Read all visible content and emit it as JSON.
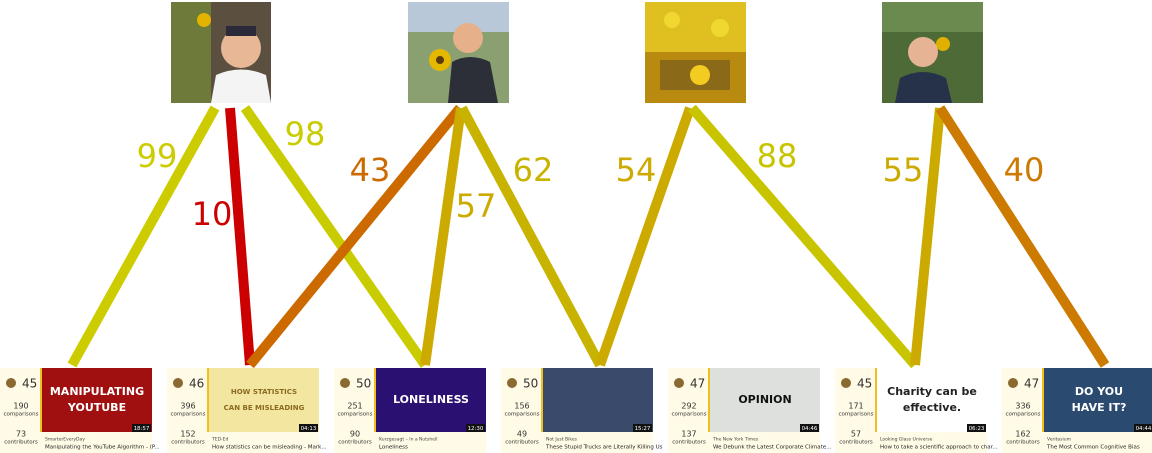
{
  "edges": [
    {
      "label": 99,
      "color": "#cccc00"
    },
    {
      "label": 10,
      "color": "#cc0000"
    },
    {
      "label": 98,
      "color": "#c8cc00"
    },
    {
      "label": 43,
      "color": "#cc6a00"
    },
    {
      "label": 57,
      "color": "#ccaa00"
    },
    {
      "label": 62,
      "color": "#c8b400"
    },
    {
      "label": 54,
      "color": "#ccaa00"
    },
    {
      "label": 88,
      "color": "#c8c400"
    },
    {
      "label": 55,
      "color": "#ccaa00"
    },
    {
      "label": 40,
      "color": "#cc7a00"
    }
  ],
  "videos": [
    {
      "score": 45,
      "comparisons": 190,
      "comparisons_label": "comparisons",
      "contributors": 73,
      "contributors_label": "contributors",
      "channel": "SmarterEveryDay",
      "title": "Manipulating the YouTube Algorithm - (P...",
      "duration": "18:57",
      "thumb_text": [
        "MANIPULATING",
        "YOUTUBE"
      ]
    },
    {
      "score": 46,
      "comparisons": 396,
      "comparisons_label": "comparisons",
      "contributors": 152,
      "contributors_label": "contributors",
      "channel": "TED-Ed",
      "title": "How statistics can be misleading - Mark...",
      "duration": "04:13",
      "thumb_text": [
        "HOW STATISTICS",
        "CAN BE MISLEADING"
      ]
    },
    {
      "score": 50,
      "comparisons": 251,
      "comparisons_label": "comparisons",
      "contributors": 90,
      "contributors_label": "contributors",
      "channel": "Kurzgesagt – In a Nutshell",
      "title": "Loneliness",
      "duration": "12:30",
      "thumb_text": [
        "LONELINESS"
      ]
    },
    {
      "score": 50,
      "comparisons": 156,
      "comparisons_label": "comparisons",
      "contributors": 49,
      "contributors_label": "contributors",
      "channel": "Not Just Bikes",
      "title": "These Stupid Trucks are Literally Killing Us",
      "duration": "15:27",
      "thumb_text": []
    },
    {
      "score": 47,
      "comparisons": 292,
      "comparisons_label": "comparisons",
      "contributors": 137,
      "contributors_label": "contributors",
      "channel": "The New York Times",
      "title": "We Debunk the Latest Corporate Climate...",
      "duration": "04:46",
      "thumb_text": [
        "OPINION"
      ]
    },
    {
      "score": 45,
      "comparisons": 171,
      "comparisons_label": "comparisons",
      "contributors": 57,
      "contributors_label": "contributors",
      "channel": "Looking Glass Universe",
      "title": "How to take a scientific approach to char...",
      "duration": "06:23",
      "thumb_text": [
        "Charity can be",
        "effective."
      ]
    },
    {
      "score": 47,
      "comparisons": 336,
      "comparisons_label": "comparisons",
      "contributors": 162,
      "contributors_label": "contributors",
      "channel": "Veritasium",
      "title": "The Most Common Cognitive Bias",
      "duration": "04:44",
      "thumb_text": [
        "DO YOU",
        "HAVE IT?"
      ]
    }
  ]
}
